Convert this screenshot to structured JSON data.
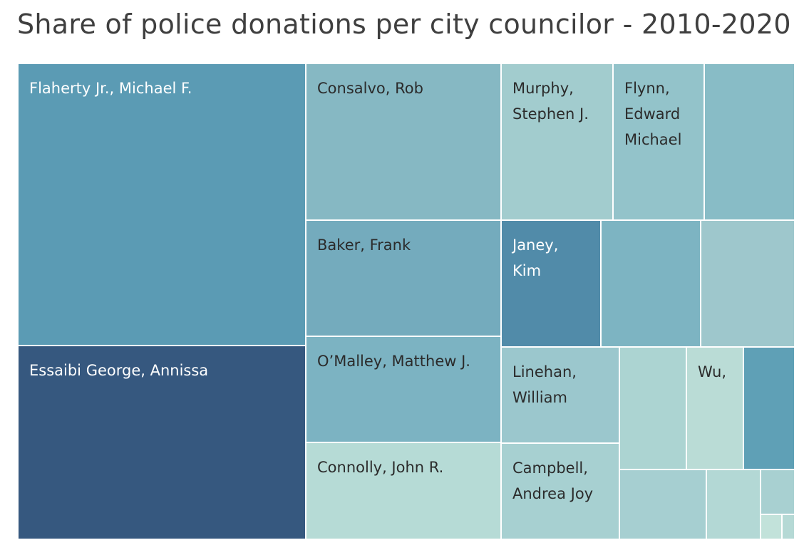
{
  "chart_data": {
    "type": "treemap",
    "title": "Share of police donations per city councilor - 2010-2020",
    "label_color_dark": "#ffffff",
    "label_color_light": "#2b2b2b",
    "tiles": [
      {
        "name": "Flaherty Jr., Michael F.",
        "label": [
          "Flaherty Jr., Michael F."
        ],
        "color": "#5b9bb4"
      },
      {
        "name": "Essaibi George, Annissa",
        "label": [
          "Essaibi George, Annissa"
        ],
        "color": "#36587f"
      },
      {
        "name": "Consalvo, Rob",
        "label": [
          "Consalvo, Rob"
        ],
        "color": "#86b8c3"
      },
      {
        "name": "Baker, Frank",
        "label": [
          "Baker, Frank"
        ],
        "color": "#74abbd"
      },
      {
        "name": "O'Malley, Matthew J.",
        "label": [
          "O’Malley, Matthew J."
        ],
        "color": "#7cb3c2"
      },
      {
        "name": "Connolly, John R.",
        "label": [
          "Connolly, John R."
        ],
        "color": "#b6dbd6"
      },
      {
        "name": "Murphy, Stephen J.",
        "label": [
          "Murphy,",
          "Stephen J."
        ],
        "color": "#a2ccce"
      },
      {
        "name": "Flynn, Edward Michael",
        "label": [
          "Flynn,",
          "Edward",
          "Michael"
        ],
        "color": "#93c3ca"
      },
      {
        "name": "",
        "label": [],
        "color": "#88bcc6"
      },
      {
        "name": "Janey, Kim",
        "label": [
          "Janey,",
          "Kim"
        ],
        "color": "#518ba9"
      },
      {
        "name": "",
        "label": [],
        "color": "#7db4c2"
      },
      {
        "name": "",
        "label": [],
        "color": "#9ec7cc"
      },
      {
        "name": "Linehan, William",
        "label": [
          "Linehan,",
          "William"
        ],
        "color": "#9bc7cd"
      },
      {
        "name": "",
        "label": [],
        "color": "#acd4d2"
      },
      {
        "name": "Wu,",
        "label": [
          "Wu,"
        ],
        "color": "#badcd6"
      },
      {
        "name": "",
        "label": [],
        "color": "#5fa0b6"
      },
      {
        "name": "Campbell, Andrea Joy",
        "label": [
          "Campbell,",
          "Andrea Joy"
        ],
        "color": "#a7d0d1"
      },
      {
        "name": "",
        "label": [],
        "color": "#a6cfd1"
      },
      {
        "name": "",
        "label": [],
        "color": "#b3d8d5"
      },
      {
        "name": "",
        "label": [],
        "color": "#a8d0d1"
      },
      {
        "name": "",
        "label": [],
        "color": "#c2e2da"
      },
      {
        "name": "",
        "label": [],
        "color": "#b5d9d5"
      }
    ]
  }
}
